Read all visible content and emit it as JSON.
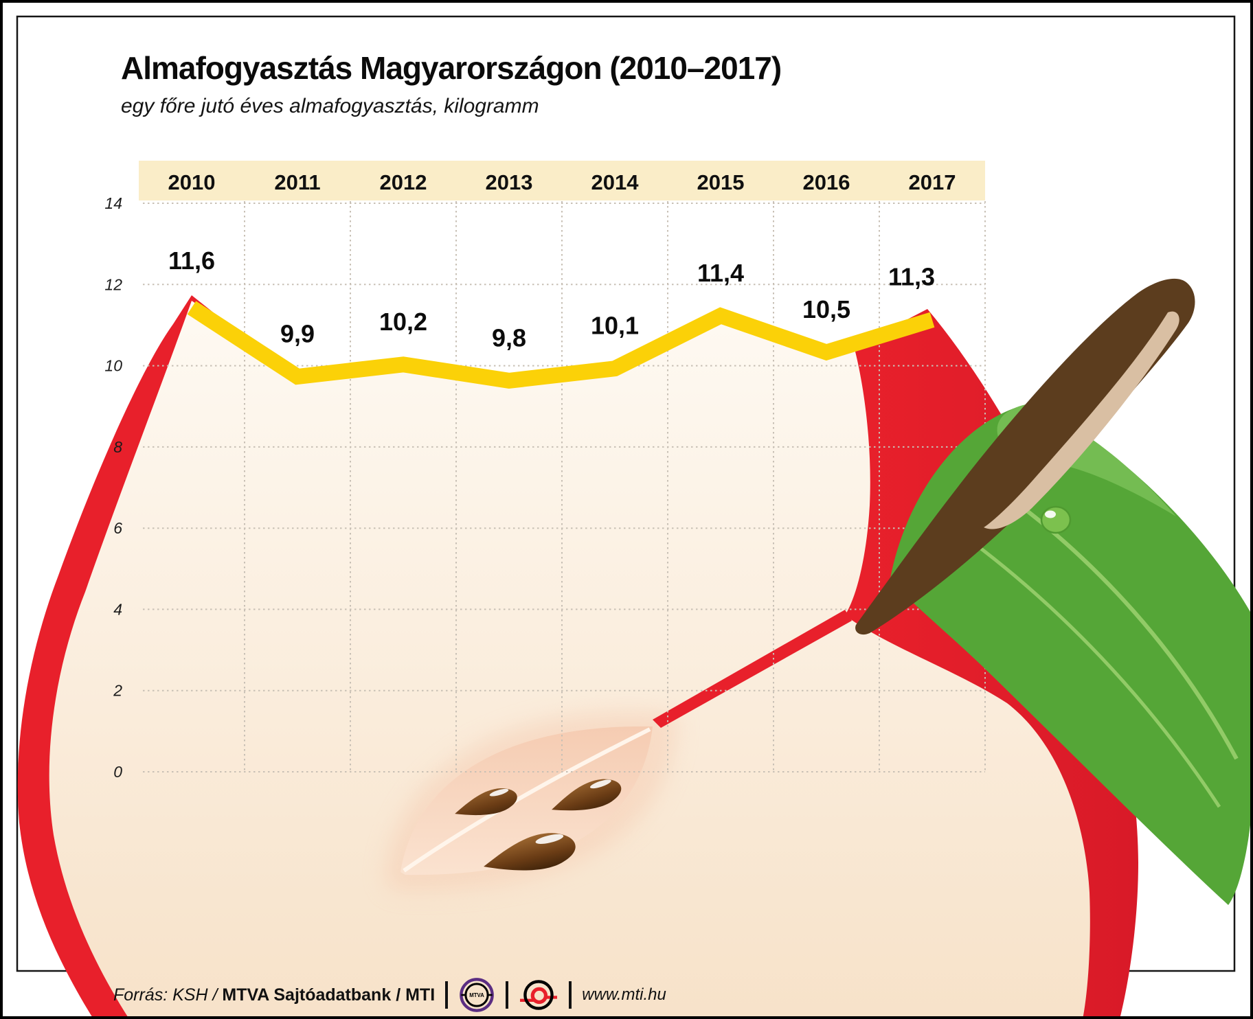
{
  "title": "Almafogyasztás Magyarországon (2010–2017)",
  "subtitle": "egy főre jutó éves almafogyasztás, kilogramm",
  "chart_data": {
    "type": "area",
    "title": "Almafogyasztás Magyarországon (2010–2017)",
    "subtitle": "egy főre jutó éves almafogyasztás, kilogramm",
    "categories": [
      "2010",
      "2011",
      "2012",
      "2013",
      "2014",
      "2015",
      "2016",
      "2017"
    ],
    "values": [
      11.6,
      9.9,
      10.2,
      9.8,
      10.1,
      11.4,
      10.5,
      11.3
    ],
    "value_labels": [
      "11,6",
      "9,9",
      "10,2",
      "9,8",
      "10,1",
      "11,4",
      "10,5",
      "11,3"
    ],
    "unit": "kilogramm",
    "ylim": [
      0,
      14
    ],
    "yticks": [
      14,
      12,
      10,
      8,
      6,
      4,
      2,
      0
    ],
    "grid": true,
    "legend": false,
    "line_color": "#fbd108",
    "background_motif": "sliced-apple-illustration"
  },
  "footer": {
    "source_prefix": "Forrás: KSH /",
    "source_publisher": "MTVA Sajtóadatbank",
    "source_sep": "/",
    "source_agency": "MTI",
    "website": "www.mti.hu",
    "mtva_logo_text": "MTVA"
  },
  "colors": {
    "accent_red": "#e8202b",
    "accent_red_deep": "#d81a28",
    "line_yellow": "#fbd108",
    "header_band": "#faedc8",
    "flesh_light": "#fefaf3",
    "flesh_mid": "#fbefe0",
    "flesh_dark": "#f7e2c9",
    "core_pink": "#f5cbb1",
    "core_pink_light": "#fbe4d2",
    "seed_brown": "#6a3c15",
    "stem_brown": "#5c3d1e",
    "stem_highlight": "#d9bfa3",
    "leaf_green": "#55a637",
    "leaf_green_light": "#74bc52",
    "leaf_vein": "#92cb67",
    "grid_dot": "#c8c0b5",
    "mtva_purple": "#5b2d82",
    "text": "#111111"
  }
}
